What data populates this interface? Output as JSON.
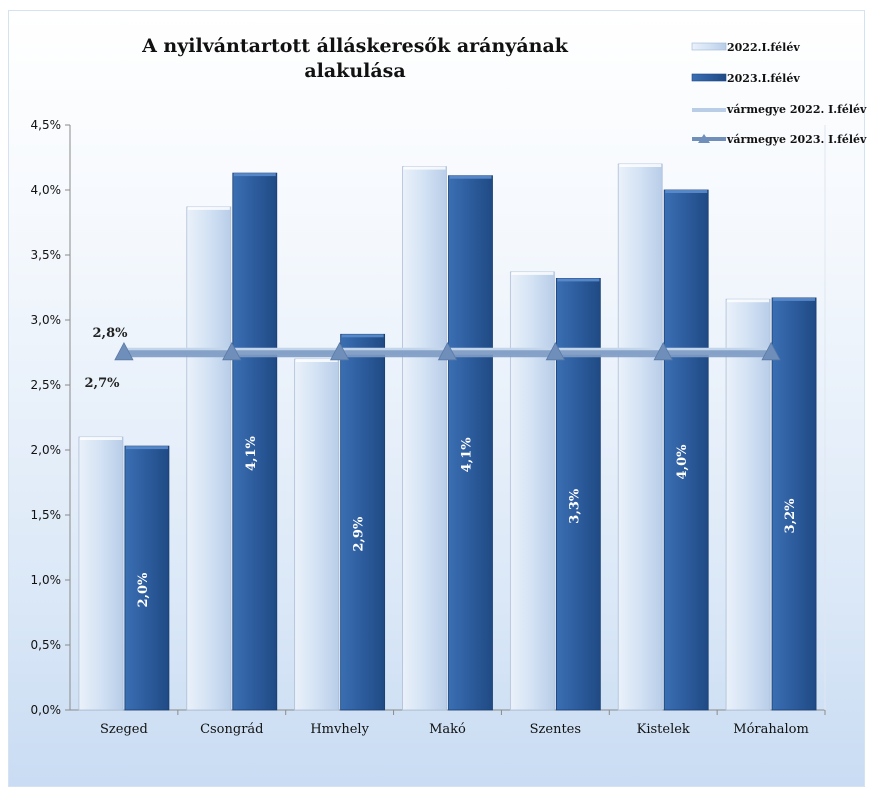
{
  "chart_data": {
    "type": "bar",
    "title": "A nyilvántartott álláskeresők arányának alakulása",
    "title_lines": [
      "A nyilvántartott álláskeresők arányának",
      "alakulása"
    ],
    "categories": [
      "Szeged",
      "Csongrád",
      "Hmvhely",
      "Makó",
      "Szentes",
      "Kistelek",
      "Mórahalom"
    ],
    "series": [
      {
        "name": "2022.I.félév",
        "values": [
          2.1,
          3.87,
          2.7,
          4.18,
          3.37,
          4.2,
          3.16
        ],
        "color": "#d3e2f4"
      },
      {
        "name": "2023.I.félév",
        "values": [
          2.03,
          4.13,
          2.89,
          4.11,
          3.32,
          4.0,
          3.17
        ],
        "color": "#2e5e9e",
        "data_labels": [
          "2,0%",
          "4,1%",
          "2,9%",
          "4,1%",
          "3,3%",
          "4,0%",
          "3,2%"
        ]
      },
      {
        "name": "vármegye 2022. I.félév",
        "type": "line",
        "value": 2.76,
        "data_label": "2,8%",
        "color": "#b9cde6"
      },
      {
        "name": "vármegye 2023. I.félév",
        "type": "line",
        "value": 2.74,
        "data_label": "2,7%",
        "color": "#6f8fba",
        "marker": "triangle"
      }
    ],
    "y_ticks": [
      "0,0%",
      "0,5%",
      "1,0%",
      "1,5%",
      "2,0%",
      "2,5%",
      "3,0%",
      "3,5%",
      "4,0%",
      "4,5%"
    ],
    "ylim": [
      0,
      4.5
    ],
    "legend_position": "top-right",
    "grid": false
  }
}
